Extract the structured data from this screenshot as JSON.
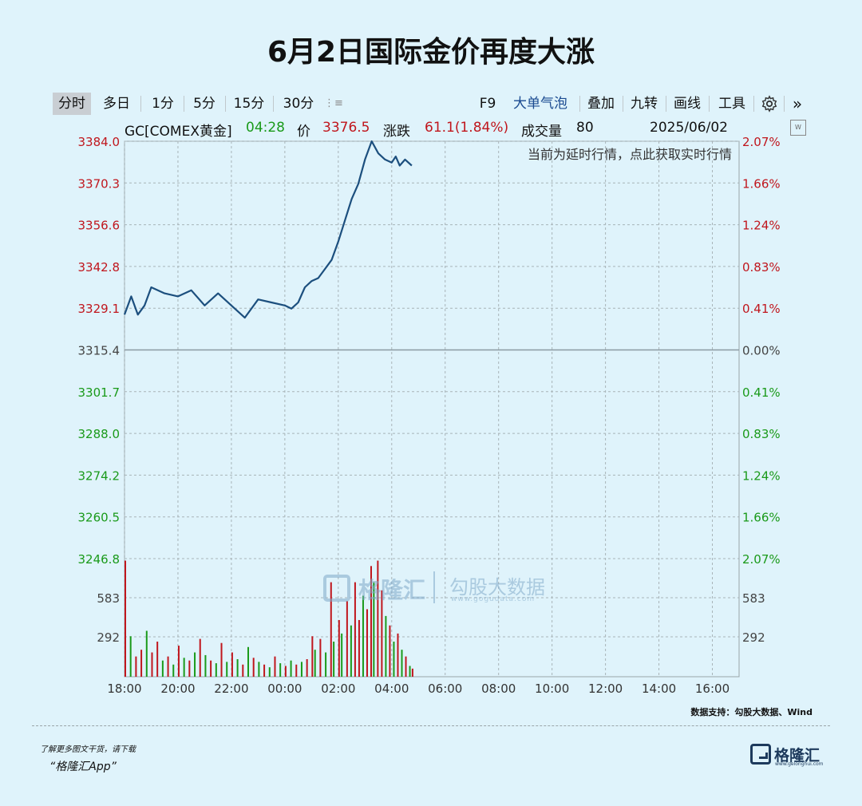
{
  "title": "6月2日国际金价再度大涨",
  "toolbar": {
    "items": [
      "分时",
      "多日",
      "1分",
      "5分",
      "15分",
      "30分",
      "F9",
      "大单气泡",
      "叠加",
      "九转",
      "画线",
      "工具"
    ],
    "active": "分时",
    "gear_icon": "gear-icon",
    "more_icon": "double-chevron-right-icon",
    "list_icon": "list-icon"
  },
  "info": {
    "symbol": "GC[COMEX黄金]",
    "time": "04:28",
    "price_label": "价",
    "price": "3376.5",
    "change_label": "涨跌",
    "change": "61.1(1.84%)",
    "volume_label": "成交量",
    "volume": "80",
    "date": "2025/06/02"
  },
  "notice": "当前为延时行情，点此获取实时行情",
  "watermark": {
    "brand": "格隆汇",
    "partner": "勾股大数据",
    "url": "www.gogudata.com"
  },
  "source": "数据支持：勾股大数据、Wind",
  "download_text": "了解更多图文干货，请下载",
  "app_name": "“格隆汇App”",
  "logo": {
    "name": "格隆汇",
    "sub": "www.gelonghui.com"
  },
  "colors": {
    "up": "#c0161d",
    "down": "#1a9a1a",
    "line": "#1c4f7e",
    "background": "#dff3fb"
  },
  "chart_data": {
    "type": "line",
    "title": "",
    "reference_price": 3315.4,
    "ylim": [
      3246.8,
      3384.0
    ],
    "y_ticks_left": [
      "3384.0",
      "3370.3",
      "3356.6",
      "3342.8",
      "3329.1",
      "3315.4",
      "3301.7",
      "3288.0",
      "3274.2",
      "3260.5",
      "3246.8"
    ],
    "y_ticks_right": [
      "2.07%",
      "1.66%",
      "1.24%",
      "0.83%",
      "0.41%",
      "0.00%",
      "0.41%",
      "0.83%",
      "1.24%",
      "1.66%",
      "2.07%"
    ],
    "x_ticks": [
      "18:00",
      "20:00",
      "22:00",
      "00:00",
      "02:00",
      "04:00",
      "06:00",
      "08:00",
      "10:00",
      "12:00",
      "14:00",
      "16:00"
    ],
    "x_hours": [
      0,
      0.25,
      0.5,
      0.75,
      1,
      1.5,
      2,
      2.5,
      3,
      3.5,
      4,
      4.5,
      5,
      5.5,
      6,
      6.25,
      6.5,
      6.75,
      7,
      7.25,
      7.5,
      7.75,
      8,
      8.25,
      8.5,
      8.75,
      9,
      9.25,
      9.5,
      9.75,
      10,
      10.15,
      10.3,
      10.5,
      10.75
    ],
    "price": [
      3327,
      3333,
      3327,
      3330,
      3336,
      3334,
      3333,
      3335,
      3330,
      3334,
      3330,
      3326,
      3332,
      3331,
      3330,
      3329,
      3331,
      3336,
      3338,
      3339,
      3342,
      3345,
      3351,
      3358,
      3365,
      3370,
      3378,
      3384,
      3380,
      3378,
      3377,
      3379,
      3376,
      3378,
      3376
    ],
    "volume_ticks": [
      "583",
      "292"
    ],
    "volume_range": [
      0,
      875
    ],
    "volume": [
      {
        "h": 0.0,
        "v": 860,
        "dir": "up"
      },
      {
        "h": 0.2,
        "v": 300,
        "dir": "down"
      },
      {
        "h": 0.4,
        "v": 150,
        "dir": "up"
      },
      {
        "h": 0.6,
        "v": 200,
        "dir": "up"
      },
      {
        "h": 0.8,
        "v": 340,
        "dir": "down"
      },
      {
        "h": 1.0,
        "v": 180,
        "dir": "up"
      },
      {
        "h": 1.2,
        "v": 260,
        "dir": "up"
      },
      {
        "h": 1.4,
        "v": 120,
        "dir": "down"
      },
      {
        "h": 1.6,
        "v": 150,
        "dir": "up"
      },
      {
        "h": 1.8,
        "v": 90,
        "dir": "down"
      },
      {
        "h": 2.0,
        "v": 230,
        "dir": "up"
      },
      {
        "h": 2.2,
        "v": 140,
        "dir": "down"
      },
      {
        "h": 2.4,
        "v": 120,
        "dir": "up"
      },
      {
        "h": 2.6,
        "v": 180,
        "dir": "down"
      },
      {
        "h": 2.8,
        "v": 280,
        "dir": "up"
      },
      {
        "h": 3.0,
        "v": 160,
        "dir": "down"
      },
      {
        "h": 3.2,
        "v": 120,
        "dir": "up"
      },
      {
        "h": 3.4,
        "v": 100,
        "dir": "down"
      },
      {
        "h": 3.6,
        "v": 250,
        "dir": "up"
      },
      {
        "h": 3.8,
        "v": 110,
        "dir": "down"
      },
      {
        "h": 4.0,
        "v": 180,
        "dir": "up"
      },
      {
        "h": 4.2,
        "v": 130,
        "dir": "down"
      },
      {
        "h": 4.4,
        "v": 90,
        "dir": "up"
      },
      {
        "h": 4.6,
        "v": 220,
        "dir": "down"
      },
      {
        "h": 4.8,
        "v": 140,
        "dir": "up"
      },
      {
        "h": 5.0,
        "v": 110,
        "dir": "down"
      },
      {
        "h": 5.2,
        "v": 90,
        "dir": "up"
      },
      {
        "h": 5.4,
        "v": 70,
        "dir": "down"
      },
      {
        "h": 5.6,
        "v": 150,
        "dir": "up"
      },
      {
        "h": 5.8,
        "v": 100,
        "dir": "down"
      },
      {
        "h": 6.0,
        "v": 80,
        "dir": "up"
      },
      {
        "h": 6.2,
        "v": 120,
        "dir": "down"
      },
      {
        "h": 6.4,
        "v": 90,
        "dir": "up"
      },
      {
        "h": 6.6,
        "v": 110,
        "dir": "down"
      },
      {
        "h": 6.8,
        "v": 130,
        "dir": "up"
      },
      {
        "h": 7.0,
        "v": 300,
        "dir": "up"
      },
      {
        "h": 7.1,
        "v": 200,
        "dir": "down"
      },
      {
        "h": 7.3,
        "v": 280,
        "dir": "up"
      },
      {
        "h": 7.5,
        "v": 180,
        "dir": "down"
      },
      {
        "h": 7.7,
        "v": 700,
        "dir": "up"
      },
      {
        "h": 7.8,
        "v": 260,
        "dir": "down"
      },
      {
        "h": 8.0,
        "v": 420,
        "dir": "up"
      },
      {
        "h": 8.1,
        "v": 320,
        "dir": "down"
      },
      {
        "h": 8.3,
        "v": 560,
        "dir": "up"
      },
      {
        "h": 8.45,
        "v": 380,
        "dir": "down"
      },
      {
        "h": 8.6,
        "v": 700,
        "dir": "up"
      },
      {
        "h": 8.75,
        "v": 420,
        "dir": "up"
      },
      {
        "h": 8.9,
        "v": 600,
        "dir": "down"
      },
      {
        "h": 9.05,
        "v": 500,
        "dir": "up"
      },
      {
        "h": 9.2,
        "v": 820,
        "dir": "up"
      },
      {
        "h": 9.3,
        "v": 700,
        "dir": "down"
      },
      {
        "h": 9.45,
        "v": 860,
        "dir": "up"
      },
      {
        "h": 9.6,
        "v": 640,
        "dir": "up"
      },
      {
        "h": 9.75,
        "v": 450,
        "dir": "down"
      },
      {
        "h": 9.9,
        "v": 380,
        "dir": "up"
      },
      {
        "h": 10.05,
        "v": 260,
        "dir": "down"
      },
      {
        "h": 10.2,
        "v": 320,
        "dir": "up"
      },
      {
        "h": 10.35,
        "v": 200,
        "dir": "down"
      },
      {
        "h": 10.5,
        "v": 150,
        "dir": "up"
      },
      {
        "h": 10.65,
        "v": 80,
        "dir": "down"
      },
      {
        "h": 10.75,
        "v": 60,
        "dir": "up"
      }
    ]
  }
}
